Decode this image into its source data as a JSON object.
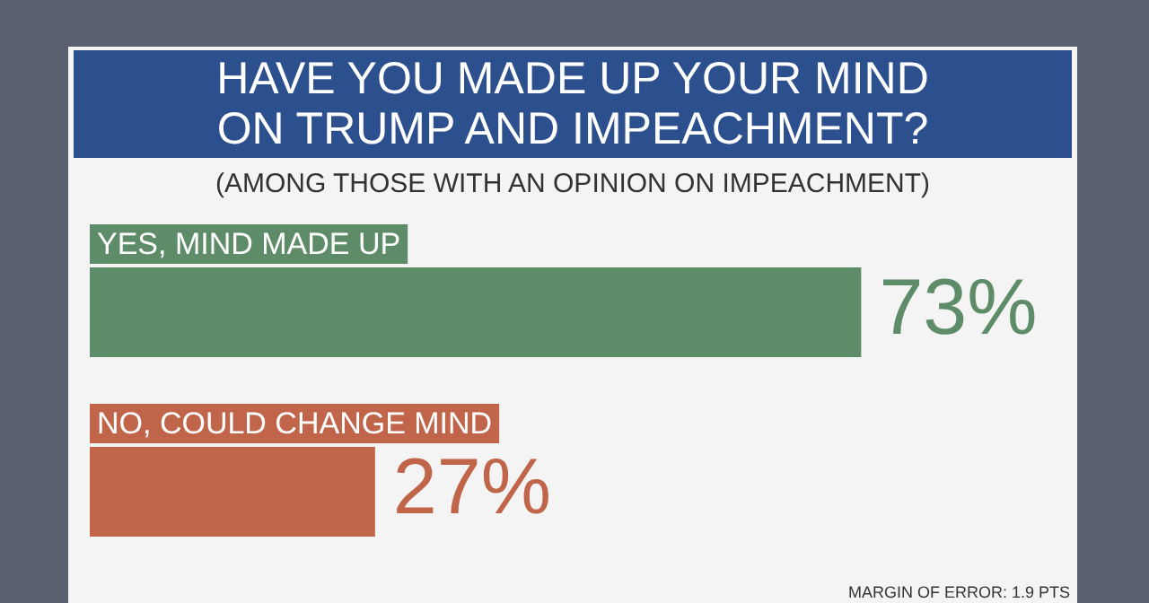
{
  "chart_data": {
    "type": "bar",
    "orientation": "horizontal",
    "title": "HAVE YOU MADE UP YOUR MIND\nON TRUMP AND IMPEACHMENT?",
    "subtitle": "(AMONG THOSE WITH AN OPINION ON IMPEACHMENT)",
    "categories": [
      "YES, MIND MADE UP",
      "NO, COULD CHANGE MIND"
    ],
    "values": [
      73,
      27
    ],
    "colors": [
      "#5e8c68",
      "#c0654a"
    ],
    "value_labels": [
      "73%",
      "27%"
    ],
    "annotations": [
      "MARGIN OF ERROR: 1.9 PTS"
    ],
    "legend": false
  }
}
